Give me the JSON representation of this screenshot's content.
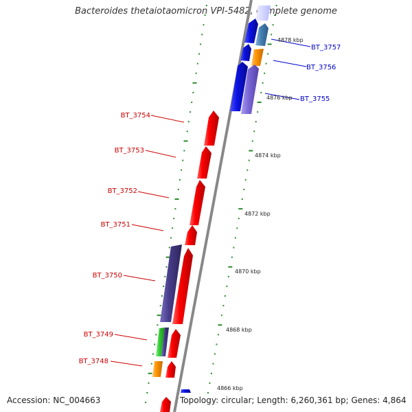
{
  "title": "Bacteroides thetaiotaomicron VPI-5482, complete genome",
  "footer": {
    "accession": "Accession: NC_004663",
    "topology": "Topology: circular; Length: 6,260,361 bp; Genes: 4,864"
  },
  "scale_labels": [
    "4878 kbp",
    "4876 kbp",
    "4874 kbp",
    "4872 kbp",
    "4870 kbp",
    "4868 kbp",
    "4866 kbp"
  ],
  "genes_forward": [
    "BT_3757",
    "BT_3756",
    "BT_3755"
  ],
  "genes_reverse": [
    "BT_3754",
    "BT_3753",
    "BT_3752",
    "BT_3751",
    "BT_3750",
    "BT_3749",
    "BT_3748"
  ],
  "colors": {
    "forward_label": "#0000cc",
    "reverse_label": "#cc0000",
    "cds_red": "#ee0000",
    "cds_blue": "#0a10dd",
    "cds_steelblue": "#4682b4",
    "cds_orange": "#ff9500",
    "cds_lavender": "#7b68d8",
    "cds_indigo": "#483d8b",
    "cds_green": "#33cc33",
    "tick_green": "#2a8a2a",
    "backbone": "#888888"
  }
}
